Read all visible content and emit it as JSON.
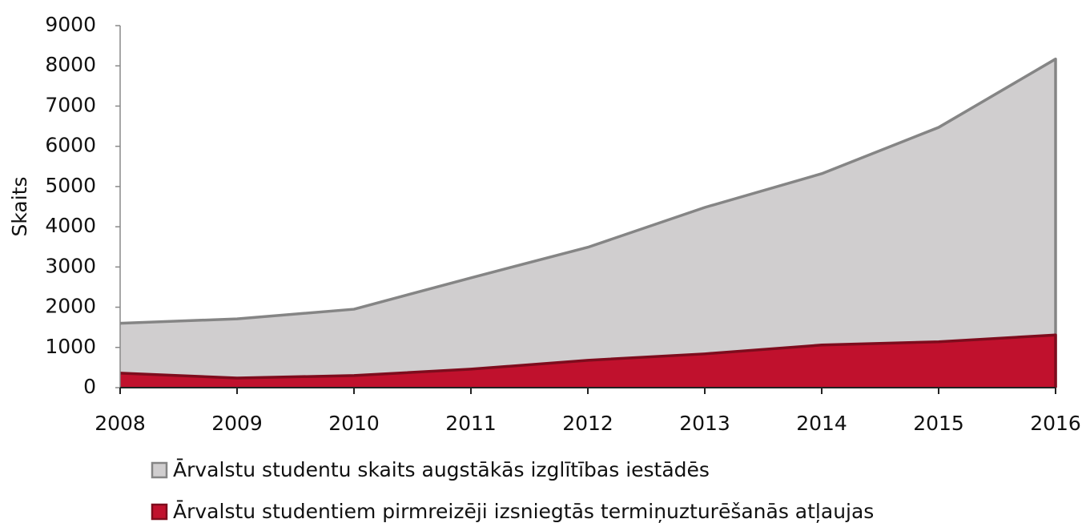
{
  "chart_data": {
    "type": "area",
    "y_label": "Skaits",
    "categories": [
      "2008",
      "2009",
      "2010",
      "2011",
      "2012",
      "2013",
      "2014",
      "2015",
      "2016"
    ],
    "series": [
      {
        "name": "Ārvalstu studentu skaits augstākās izglītības iestādēs",
        "color": "#d0cecf",
        "line_color": "#858585",
        "values": [
          1600,
          1710,
          1950,
          2730,
          3490,
          4480,
          5320,
          6470,
          8170
        ]
      },
      {
        "name": "Ārvalstu studentiem pirmreizēji izsniegtās termiņuzturēšanās atļaujas",
        "color": "#c0112d",
        "line_color": "#7e0c1d",
        "values": [
          360,
          240,
          300,
          460,
          680,
          840,
          1060,
          1140,
          1310
        ]
      }
    ],
    "ylim": [
      0,
      9000
    ],
    "yticks": [
      0,
      1000,
      2000,
      3000,
      4000,
      5000,
      6000,
      7000,
      8000,
      9000
    ],
    "grid": false,
    "legend": "bottom"
  }
}
